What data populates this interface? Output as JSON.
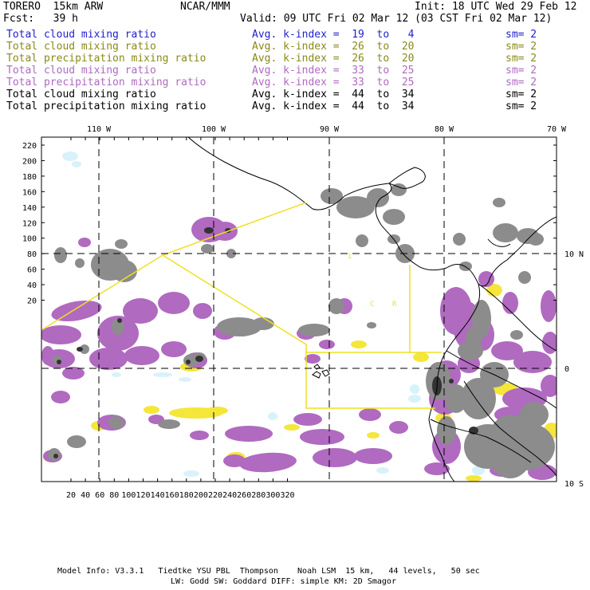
{
  "header": {
    "model_name": "TORERO  15km ARW",
    "org": "NCAR/MMM",
    "init": "Init: 18 UTC Wed 29 Feb 12",
    "fcst": "Fcst:   39 h",
    "valid": "Valid: 09 UTC Fri 02 Mar 12 (03 CST Fri 02 Mar 12)"
  },
  "legend": [
    {
      "field": "Total cloud mixing ratio",
      "kindex": "Avg. k-index =  19  to   4",
      "sm": "sm= 2",
      "color": "#1f1fcc"
    },
    {
      "field": "Total cloud mixing ratio",
      "kindex": "Avg. k-index =  26  to  20",
      "sm": "sm= 2",
      "color": "#8a8a1a"
    },
    {
      "field": "Total precipitation mixing ratio",
      "kindex": "Avg. k-index =  26  to  20",
      "sm": "sm= 2",
      "color": "#8a8a1a"
    },
    {
      "field": "Total cloud mixing ratio",
      "kindex": "Avg. k-index =  33  to  25",
      "sm": "sm= 2",
      "color": "#b06ac0"
    },
    {
      "field": "Total precipitation mixing ratio",
      "kindex": "Avg. k-index =  33  to  25",
      "sm": "sm= 2",
      "color": "#b06ac0"
    },
    {
      "field": "Total cloud mixing ratio",
      "kindex": "Avg. k-index =  44  to  34",
      "sm": "sm= 2",
      "color": "#000000"
    },
    {
      "field": "Total precipitation mixing ratio",
      "kindex": "Avg. k-index =  44  to  34",
      "sm": "sm= 2",
      "color": "#000000"
    }
  ],
  "axes": {
    "top_labels": [
      "110 W",
      "100 W",
      "90 W",
      "80 W",
      "70 W"
    ],
    "right_labels": [
      "10 N",
      "0",
      "10 S"
    ],
    "left_ticks": [
      "220",
      "200",
      "180",
      "160",
      "140",
      "120",
      "100",
      "80",
      "60",
      "40",
      "20"
    ],
    "bottom_ticks": [
      "20",
      "40",
      "60",
      "80",
      "100",
      "120",
      "140",
      "160",
      "180",
      "200",
      "220",
      "240",
      "260",
      "280",
      "300",
      "320"
    ]
  },
  "map_labels": {
    "label_c": "C",
    "label_r": "R"
  },
  "colors": {
    "purple": "#b06ac0",
    "yellow": "#f5e63a",
    "gray": "#8c8c8c",
    "dark": "#333333",
    "lightblue": "#d8f2fb",
    "boundary": "#f0e020"
  },
  "footer": {
    "line1": "Model Info: V3.3.1   Tiedtke YSU PBL  Thompson    Noah LSM  15 km,   44 levels,   50 sec",
    "line2": "LW: Godd SW: Goddard DIFF: simple KM: 2D Smagor"
  }
}
